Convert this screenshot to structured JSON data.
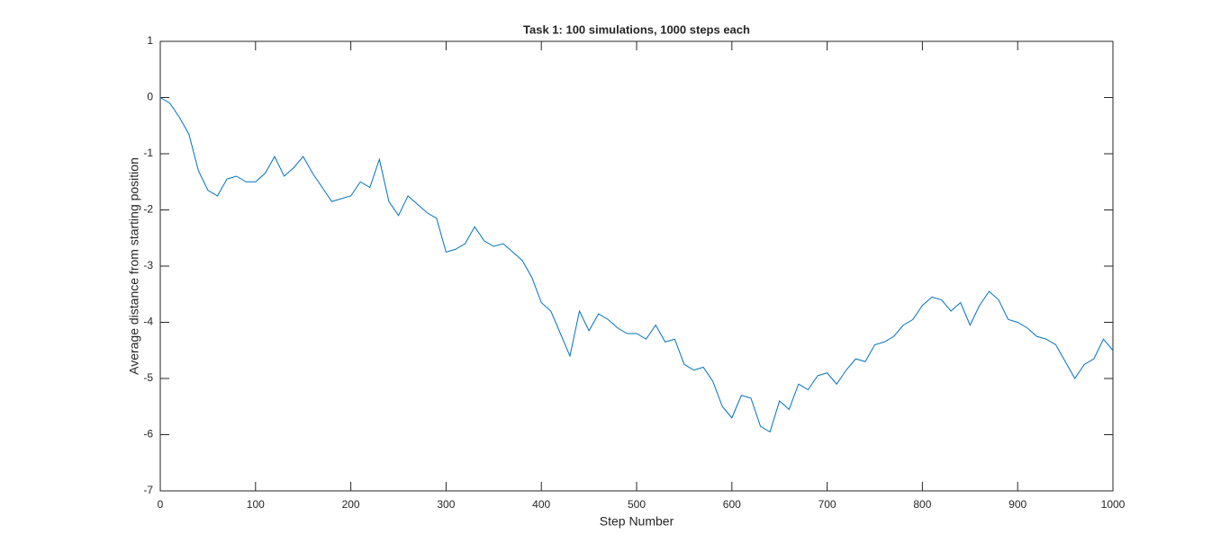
{
  "chart_data": {
    "type": "line",
    "title": "Task 1: 100 simulations, 1000 steps each",
    "xlabel": "Step Number",
    "ylabel": "Average distance from starting position",
    "x": [
      0,
      10,
      20,
      30,
      40,
      50,
      60,
      70,
      80,
      90,
      100,
      110,
      120,
      130,
      140,
      150,
      160,
      170,
      180,
      190,
      200,
      210,
      220,
      230,
      240,
      250,
      260,
      270,
      280,
      290,
      300,
      310,
      320,
      330,
      340,
      350,
      360,
      370,
      380,
      390,
      400,
      410,
      420,
      430,
      440,
      450,
      460,
      470,
      480,
      490,
      500,
      510,
      520,
      530,
      540,
      550,
      560,
      570,
      580,
      590,
      600,
      610,
      620,
      630,
      640,
      650,
      660,
      670,
      680,
      690,
      700,
      710,
      720,
      730,
      740,
      750,
      760,
      770,
      780,
      790,
      800,
      810,
      820,
      830,
      840,
      850,
      860,
      870,
      880,
      890,
      900,
      910,
      920,
      930,
      940,
      950,
      960,
      970,
      980,
      990,
      1000
    ],
    "series": [
      {
        "name": "Average distance",
        "color": "#0072bd",
        "values": [
          0,
          -0.1,
          -0.35,
          -0.65,
          -1.3,
          -1.65,
          -1.75,
          -1.45,
          -1.4,
          -1.5,
          -1.5,
          -1.35,
          -1.05,
          -1.4,
          -1.25,
          -1.05,
          -1.35,
          -1.6,
          -1.85,
          -1.8,
          -1.75,
          -1.5,
          -1.6,
          -1.1,
          -1.85,
          -2.1,
          -1.75,
          -1.9,
          -2.05,
          -2.15,
          -2.75,
          -2.7,
          -2.6,
          -2.3,
          -2.55,
          -2.65,
          -2.6,
          -2.75,
          -2.9,
          -3.2,
          -3.65,
          -3.8,
          -4.2,
          -4.6,
          -3.8,
          -4.15,
          -3.85,
          -3.95,
          -4.1,
          -4.2,
          -4.2,
          -4.3,
          -4.05,
          -4.35,
          -4.3,
          -4.75,
          -4.85,
          -4.8,
          -5.05,
          -5.5,
          -5.7,
          -5.3,
          -5.35,
          -5.85,
          -5.95,
          -5.4,
          -5.55,
          -5.1,
          -5.2,
          -4.95,
          -4.9,
          -5.1,
          -4.85,
          -4.65,
          -4.7,
          -4.4,
          -4.35,
          -4.25,
          -4.05,
          -3.95,
          -3.7,
          -3.55,
          -3.6,
          -3.8,
          -3.65,
          -4.05,
          -3.7,
          -3.45,
          -3.6,
          -3.95,
          -4.0,
          -4.1,
          -4.25,
          -4.3,
          -4.4,
          -4.7,
          -5.0,
          -4.75,
          -4.65,
          -4.3,
          -4.5
        ]
      }
    ],
    "xlim": [
      0,
      1000
    ],
    "xticks": [
      0,
      100,
      200,
      300,
      400,
      500,
      600,
      700,
      800,
      900,
      1000
    ],
    "ylim": [
      -7,
      1
    ],
    "yticks": [
      -7,
      -6,
      -5,
      -4,
      -3,
      -2,
      -1,
      0,
      1
    ]
  }
}
